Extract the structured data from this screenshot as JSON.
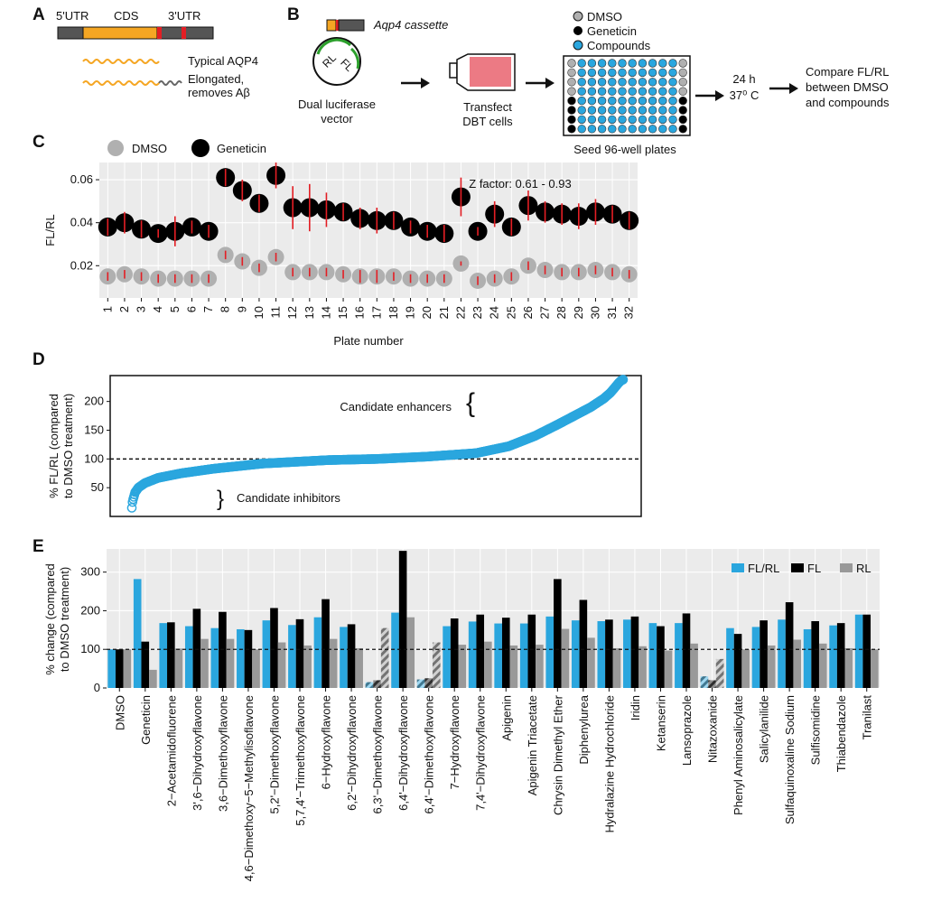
{
  "panels": {
    "A": {
      "letter": "A",
      "utr5": "5'UTR",
      "cds": "CDS",
      "utr3": "3'UTR",
      "typical": "Typical AQP4",
      "elongated_1": "Elongated,",
      "elongated_2": "removes Aβ"
    },
    "B": {
      "letter": "B",
      "cassette": "Aqp4 cassette",
      "vector_1": "Dual luciferase",
      "vector_2": "vector",
      "rl": "RL",
      "fl": "FL",
      "transfect_1": "Transfect",
      "transfect_2": "DBT cells",
      "seed": "Seed 96-well plates",
      "legend": [
        "DMSO",
        "Geneticin",
        "Compounds"
      ],
      "time": "24 h",
      "temp": "37⁰ C",
      "compare_1": "Compare FL/RL",
      "compare_2": "between DMSO",
      "compare_3": "and compounds",
      "colors": {
        "dmso": "#b0b0b0",
        "geneticin": "#000000",
        "compounds": "#2aa6de"
      }
    },
    "C": {
      "letter": "C"
    },
    "D": {
      "letter": "D"
    },
    "E": {
      "letter": "E"
    }
  },
  "chart_data": [
    {
      "id": "C",
      "type": "scatter",
      "ylabel": "FL/RL",
      "xlabel": "Plate number",
      "annotation": "Z factor: 0.61 - 0.93",
      "legend": [
        "DMSO",
        "Geneticin"
      ],
      "ylim": [
        0.005,
        0.068
      ],
      "yticks": [
        0.02,
        0.04,
        0.06
      ],
      "ytick_labels": [
        "0.02",
        "0.04",
        "0.06"
      ],
      "categories": [
        "1",
        "2",
        "3",
        "4",
        "5",
        "6",
        "7",
        "8",
        "9",
        "10",
        "11",
        "12",
        "13",
        "14",
        "15",
        "16",
        "17",
        "18",
        "19",
        "20",
        "21",
        "22",
        "23",
        "24",
        "25",
        "26",
        "27",
        "28",
        "29",
        "30",
        "31",
        "32"
      ],
      "series": [
        {
          "name": "Geneticin",
          "color": "#000000",
          "values": [
            0.038,
            0.04,
            0.037,
            0.035,
            0.036,
            0.038,
            0.036,
            0.061,
            0.055,
            0.049,
            0.062,
            0.047,
            0.047,
            0.046,
            0.045,
            0.042,
            0.041,
            0.041,
            0.038,
            0.036,
            0.035,
            0.052,
            0.036,
            0.044,
            0.038,
            0.048,
            0.045,
            0.044,
            0.043,
            0.045,
            0.044,
            0.041
          ],
          "errors": [
            0.004,
            0.005,
            0.004,
            0.002,
            0.007,
            0.003,
            0.003,
            0.004,
            0.005,
            0.004,
            0.006,
            0.01,
            0.011,
            0.008,
            0.004,
            0.005,
            0.006,
            0.004,
            0.003,
            0.003,
            0.004,
            0.009,
            0.002,
            0.006,
            0.004,
            0.007,
            0.005,
            0.005,
            0.006,
            0.006,
            0.004,
            0.004
          ]
        },
        {
          "name": "DMSO",
          "color": "#b0b0b0",
          "values": [
            0.015,
            0.016,
            0.015,
            0.014,
            0.014,
            0.014,
            0.014,
            0.025,
            0.022,
            0.019,
            0.024,
            0.017,
            0.017,
            0.017,
            0.016,
            0.015,
            0.015,
            0.015,
            0.014,
            0.014,
            0.014,
            0.021,
            0.013,
            0.014,
            0.015,
            0.02,
            0.018,
            0.017,
            0.017,
            0.018,
            0.017,
            0.016
          ],
          "errors": [
            0.002,
            0.002,
            0.002,
            0.002,
            0.002,
            0.002,
            0.002,
            0.002,
            0.002,
            0.002,
            0.002,
            0.002,
            0.002,
            0.002,
            0.002,
            0.003,
            0.003,
            0.002,
            0.002,
            0.002,
            0.002,
            0.001,
            0.002,
            0.002,
            0.002,
            0.002,
            0.002,
            0.002,
            0.002,
            0.002,
            0.002,
            0.002
          ]
        }
      ],
      "grid": true
    },
    {
      "id": "D",
      "type": "scatter",
      "ylabel_1": "% FL/RL (compared",
      "ylabel_2": "to DMSO treatment)",
      "ylim": [
        0,
        245
      ],
      "yticks": [
        50,
        100,
        150,
        200
      ],
      "reference_line": 100,
      "n_points": 1500,
      "anchors": [
        [
          0,
          15
        ],
        [
          1,
          20
        ],
        [
          2,
          25
        ],
        [
          3,
          28
        ],
        [
          5,
          32
        ],
        [
          10,
          42
        ],
        [
          20,
          50
        ],
        [
          40,
          58
        ],
        [
          80,
          67
        ],
        [
          150,
          75
        ],
        [
          250,
          83
        ],
        [
          400,
          92
        ],
        [
          600,
          98
        ],
        [
          750,
          100
        ],
        [
          900,
          104
        ],
        [
          1050,
          110
        ],
        [
          1150,
          122
        ],
        [
          1230,
          140
        ],
        [
          1300,
          160
        ],
        [
          1350,
          175
        ],
        [
          1400,
          190
        ],
        [
          1440,
          205
        ],
        [
          1460,
          215
        ],
        [
          1475,
          225
        ],
        [
          1485,
          232
        ],
        [
          1492,
          236
        ],
        [
          1499,
          238
        ]
      ],
      "annotations": [
        "Candidate enhancers",
        "Candidate inhibitors"
      ],
      "color": "#2aa6de"
    },
    {
      "id": "E",
      "type": "bar",
      "ylabel_1": "% change (compared",
      "ylabel_2": "to DMSO treatment)",
      "ylim": [
        0,
        360
      ],
      "yticks": [
        0,
        100,
        200,
        300
      ],
      "reference_line": 100,
      "legend_placement": "top-right",
      "categories": [
        "DMSO",
        "Geneticin",
        "2−Acetamidofluorene",
        "3',6−Dihydroxyflavone",
        "3,6−Dimethoxyflavone",
        "4,6−Dimethoxy−5−Methylisoflavone",
        "5,2'−Dimethoxyflavone",
        "5,7,4'−Trimethoxyflavone",
        "6−Hydroxyflavone",
        "6,2'−Dihydroxyflavone",
        "6,3'−Dimethoxyflavone",
        "6,4'−Dihydroxyflavone",
        "6,4'−Dimethoxyflavone",
        "7−Hydroxyflavone",
        "7,4'−Dihydroxyflavone",
        "Apigenin",
        "Apigenin Triacetate",
        "Chrysin Dimethyl Ether",
        "Diphenylurea",
        "Hydralazine Hydrochloride",
        "Iridin",
        "Ketanserin",
        "Lansoprazole",
        "Nitazoxanide",
        "Phenyl Aminosalicylate",
        "Salicylanilide",
        "Sulfaquinoxaline Sodium",
        "Sulfisomidine",
        "Thiabendazole",
        "Tranilast"
      ],
      "hatched": [
        false,
        false,
        false,
        false,
        false,
        false,
        false,
        false,
        false,
        false,
        true,
        false,
        true,
        false,
        false,
        false,
        false,
        false,
        false,
        false,
        false,
        false,
        false,
        true,
        false,
        false,
        false,
        false,
        false,
        false
      ],
      "series": [
        {
          "name": "FL/RL",
          "color": "#2aa6de",
          "values": [
            100,
            282,
            168,
            160,
            155,
            152,
            175,
            163,
            183,
            158,
            15,
            195,
            22,
            160,
            172,
            167,
            167,
            185,
            175,
            173,
            177,
            168,
            168,
            30,
            155,
            158,
            177,
            152,
            162,
            190
          ]
        },
        {
          "name": "FL",
          "color": "#000000",
          "values": [
            100,
            120,
            170,
            205,
            197,
            150,
            207,
            178,
            230,
            165,
            20,
            355,
            25,
            180,
            190,
            182,
            190,
            282,
            228,
            177,
            185,
            160,
            193,
            20,
            140,
            175,
            222,
            173,
            168,
            190
          ]
        },
        {
          "name": "RL",
          "color": "#999999",
          "values": [
            100,
            47,
            102,
            127,
            127,
            100,
            118,
            110,
            127,
            103,
            155,
            183,
            118,
            112,
            120,
            110,
            112,
            153,
            130,
            103,
            108,
            97,
            115,
            75,
            100,
            110,
            125,
            115,
            103,
            100
          ]
        }
      ],
      "grid": true
    }
  ]
}
